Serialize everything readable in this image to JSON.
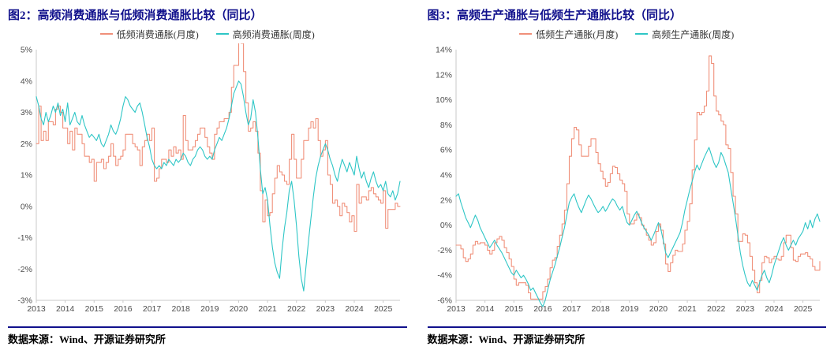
{
  "colors": {
    "navy": "#10108c",
    "low_freq_line": "#f0907a",
    "high_freq_line": "#2ec6c6",
    "axis": "#c9c9c9",
    "tick_text": "#4d4d4d"
  },
  "figures": [
    {
      "title": "图2：高频消费通胀与低频消费通胀比较（同比）",
      "source": "数据来源：Wind、开源证券研究所",
      "legend": [
        {
          "label": "低频消费通胀(月度)",
          "color": "#f0907a"
        },
        {
          "label": "高频消费通胀(周度)",
          "color": "#2ec6c6"
        }
      ]
    },
    {
      "title": "图3：高频生产通胀与低频生产通胀比较（同比）",
      "source": "数据来源：Wind、开源证券研究所",
      "legend": [
        {
          "label": "低频生产通胀(月度)",
          "color": "#f0907a"
        },
        {
          "label": "高频生产通胀(周度)",
          "color": "#2ec6c6"
        }
      ]
    }
  ],
  "chart_data": [
    {
      "type": "line",
      "title": "高频消费通胀与低频消费通胀比较（同比）",
      "x_start": 2013.0,
      "x_step_years": 0.0833333,
      "x_ticks": [
        2013,
        2014,
        2015,
        2016,
        2017,
        2018,
        2019,
        2020,
        2021,
        2022,
        2023,
        2024,
        2025
      ],
      "ylim": [
        -3,
        5
      ],
      "y_tick_step": 1,
      "y_tick_suffix": "%",
      "grid": false,
      "legend_position": "top",
      "series": [
        {
          "name": "低频消费通胀(月度)",
          "color": "#f0907a",
          "style": "step",
          "values": [
            2.0,
            3.2,
            2.1,
            2.4,
            2.1,
            2.7,
            2.7,
            2.6,
            3.1,
            3.2,
            3.0,
            2.5,
            2.5,
            2.0,
            2.4,
            1.8,
            2.5,
            2.3,
            2.3,
            2.0,
            1.6,
            1.6,
            1.4,
            1.5,
            0.8,
            1.4,
            1.4,
            1.5,
            1.2,
            1.4,
            1.6,
            2.0,
            1.6,
            1.3,
            1.5,
            1.6,
            1.8,
            2.3,
            2.3,
            2.3,
            2.0,
            1.9,
            1.8,
            1.3,
            1.9,
            2.1,
            2.3,
            2.1,
            2.5,
            0.8,
            0.9,
            1.2,
            1.5,
            1.5,
            1.4,
            1.8,
            1.6,
            1.9,
            1.7,
            1.8,
            1.5,
            2.9,
            2.1,
            1.8,
            1.8,
            1.9,
            2.1,
            2.3,
            2.5,
            2.5,
            2.2,
            1.9,
            1.7,
            1.5,
            2.3,
            2.5,
            2.7,
            2.7,
            2.8,
            2.8,
            3.0,
            3.8,
            4.5,
            4.5,
            5.4,
            5.2,
            4.3,
            3.3,
            2.4,
            2.5,
            2.7,
            2.4,
            1.7,
            0.5,
            -0.5,
            0.2,
            -0.3,
            -0.2,
            0.4,
            0.9,
            1.3,
            1.1,
            1.0,
            0.8,
            0.7,
            1.5,
            2.3,
            1.5,
            0.9,
            0.9,
            1.5,
            2.1,
            2.1,
            2.5,
            2.7,
            2.5,
            2.8,
            2.1,
            1.6,
            1.8,
            2.1,
            1.0,
            0.7,
            0.1,
            0.2,
            0.0,
            -0.3,
            0.1,
            0.0,
            -0.2,
            -0.5,
            -0.3,
            -0.8,
            0.7,
            0.1,
            0.3,
            0.3,
            0.2,
            0.5,
            0.6,
            0.4,
            0.3,
            0.2,
            0.1,
            0.5,
            -0.7,
            -0.1,
            -0.1,
            -0.1,
            0.1,
            0.0,
            0.0
          ]
        },
        {
          "name": "高频消费通胀(周度)",
          "color": "#2ec6c6",
          "style": "linear",
          "values": [
            3.5,
            3.2,
            2.8,
            2.6,
            3.0,
            2.7,
            2.9,
            3.2,
            3.0,
            3.3,
            2.9,
            3.1,
            2.7,
            3.3,
            2.6,
            2.8,
            3.0,
            2.7,
            2.6,
            2.9,
            2.6,
            2.4,
            2.2,
            2.3,
            2.2,
            2.1,
            2.3,
            2.0,
            1.9,
            2.1,
            2.3,
            2.6,
            2.4,
            2.3,
            2.5,
            2.8,
            3.2,
            3.5,
            3.4,
            3.2,
            3.1,
            3.0,
            3.2,
            3.3,
            3.0,
            2.6,
            2.2,
            1.9,
            1.5,
            1.3,
            1.2,
            1.3,
            1.2,
            1.4,
            1.3,
            1.5,
            1.4,
            1.3,
            1.5,
            1.4,
            1.5,
            1.7,
            1.6,
            1.4,
            1.3,
            1.5,
            1.6,
            1.8,
            1.9,
            1.8,
            1.6,
            1.5,
            1.6,
            1.5,
            1.8,
            2.0,
            2.2,
            2.1,
            2.3,
            2.5,
            2.8,
            3.2,
            3.6,
            3.8,
            4.0,
            3.9,
            3.5,
            3.0,
            2.6,
            2.8,
            3.4,
            3.0,
            2.2,
            1.2,
            0.4,
            0.6,
            0.2,
            -0.6,
            -1.3,
            -1.8,
            -2.1,
            -2.3,
            -1.4,
            -0.7,
            -0.2,
            0.5,
            0.8,
            0.2,
            -0.6,
            -1.6,
            -2.3,
            -2.7,
            -1.9,
            -1.1,
            -0.4,
            0.3,
            0.9,
            1.3,
            1.6,
            1.8,
            2.0,
            1.8,
            1.5,
            1.3,
            1.0,
            0.8,
            1.2,
            1.5,
            1.3,
            1.1,
            1.4,
            1.2,
            1.0,
            1.6,
            1.2,
            0.9,
            1.1,
            0.8,
            0.6,
            0.9,
            1.1,
            0.8,
            0.6,
            0.7,
            0.5,
            0.8,
            0.4,
            0.3,
            0.5,
            0.2,
            0.4,
            0.8
          ]
        }
      ]
    },
    {
      "type": "line",
      "title": "高频生产通胀与低频生产通胀比较（同比）",
      "x_start": 2013.0,
      "x_step_years": 0.0833333,
      "x_ticks": [
        2013,
        2014,
        2015,
        2016,
        2017,
        2018,
        2019,
        2020,
        2021,
        2022,
        2023,
        2024,
        2025
      ],
      "ylim": [
        -6,
        14
      ],
      "y_tick_step": 2,
      "y_tick_suffix": "%",
      "grid": false,
      "legend_position": "top",
      "series": [
        {
          "name": "低频生产通胀(月度)",
          "color": "#f0907a",
          "style": "step",
          "values": [
            -1.6,
            -1.6,
            -1.9,
            -2.6,
            -2.9,
            -2.7,
            -2.3,
            -1.6,
            -1.3,
            -1.5,
            -1.4,
            -1.4,
            -1.6,
            -2.0,
            -2.3,
            -2.0,
            -1.4,
            -1.1,
            -0.9,
            -1.2,
            -1.8,
            -2.2,
            -2.7,
            -3.3,
            -4.3,
            -4.8,
            -4.6,
            -4.6,
            -4.6,
            -4.8,
            -5.4,
            -5.9,
            -5.9,
            -5.9,
            -5.9,
            -5.9,
            -5.3,
            -4.9,
            -4.3,
            -3.4,
            -2.8,
            -2.6,
            -1.7,
            -0.8,
            0.1,
            1.2,
            3.3,
            5.5,
            6.9,
            7.8,
            7.6,
            6.4,
            5.5,
            5.5,
            5.5,
            6.3,
            6.9,
            6.9,
            5.8,
            4.9,
            4.3,
            3.7,
            3.1,
            3.4,
            4.1,
            4.7,
            4.6,
            4.1,
            3.6,
            3.3,
            2.7,
            0.9,
            0.1,
            0.1,
            0.4,
            0.9,
            0.6,
            0.0,
            -0.3,
            -0.8,
            -1.2,
            -1.6,
            -1.4,
            -0.5,
            0.1,
            -0.4,
            -1.5,
            -3.1,
            -3.7,
            -3.0,
            -2.4,
            -2.0,
            -2.1,
            -2.1,
            -1.5,
            -0.4,
            0.3,
            1.7,
            4.4,
            6.8,
            9.0,
            8.8,
            9.0,
            9.5,
            10.7,
            13.5,
            12.9,
            10.3,
            9.1,
            8.8,
            8.3,
            8.0,
            6.4,
            6.1,
            4.2,
            2.3,
            0.9,
            -1.3,
            -1.3,
            -0.7,
            -0.8,
            -1.4,
            -2.5,
            -3.6,
            -4.6,
            -5.4,
            -4.4,
            -3.0,
            -2.5,
            -2.6,
            -3.0,
            -2.7,
            -2.5,
            -2.7,
            -2.8,
            -2.5,
            -1.4,
            -0.8,
            -0.8,
            -1.8,
            -2.8,
            -2.9,
            -2.5,
            -2.3,
            -2.3,
            -2.2,
            -2.5,
            -2.7,
            -3.3,
            -3.6,
            -3.6,
            -2.9
          ]
        },
        {
          "name": "高频生产通胀(周度)",
          "color": "#2ec6c6",
          "style": "linear",
          "values": [
            2.3,
            2.5,
            1.8,
            1.2,
            0.6,
            0.2,
            -0.2,
            0.3,
            0.8,
            0.4,
            -0.2,
            -0.6,
            -1.0,
            -1.4,
            -1.8,
            -1.5,
            -1.2,
            -1.6,
            -1.9,
            -2.2,
            -2.6,
            -3.0,
            -3.4,
            -3.8,
            -4.0,
            -3.6,
            -3.9,
            -4.2,
            -4.0,
            -4.3,
            -4.7,
            -5.2,
            -5.0,
            -5.4,
            -5.8,
            -6.2,
            -6.5,
            -6.0,
            -5.2,
            -4.4,
            -3.8,
            -3.2,
            -2.5,
            -1.8,
            -1.0,
            -0.2,
            0.8,
            1.8,
            2.2,
            2.5,
            1.9,
            1.4,
            1.0,
            1.5,
            2.0,
            2.4,
            2.1,
            1.7,
            1.3,
            1.0,
            1.2,
            1.5,
            1.1,
            1.4,
            1.8,
            2.1,
            1.9,
            1.5,
            1.2,
            1.5,
            0.8,
            0.2,
            0.0,
            0.4,
            0.8,
            1.1,
            0.7,
            0.2,
            -0.2,
            -0.5,
            -0.8,
            -1.2,
            -0.8,
            -0.3,
            0.2,
            -0.3,
            -1.2,
            -2.2,
            -2.6,
            -2.2,
            -1.8,
            -1.4,
            -1.0,
            -0.6,
            0.2,
            1.2,
            2.0,
            2.8,
            3.5,
            4.2,
            4.8,
            4.4,
            4.9,
            5.4,
            5.8,
            6.2,
            5.6,
            5.0,
            4.6,
            5.0,
            5.8,
            5.4,
            4.8,
            4.2,
            3.0,
            1.8,
            0.6,
            -0.8,
            -2.2,
            -3.2,
            -4.0,
            -4.6,
            -4.9,
            -4.4,
            -4.8,
            -5.2,
            -4.6,
            -4.0,
            -3.6,
            -4.2,
            -4.6,
            -4.0,
            -3.2,
            -2.6,
            -2.0,
            -1.4,
            -1.0,
            -1.6,
            -2.0,
            -1.6,
            -1.2,
            -1.6,
            -1.1,
            -0.8,
            -0.5,
            0.2,
            -0.3,
            0.4,
            -0.2,
            0.5,
            0.9,
            0.3
          ]
        }
      ]
    }
  ]
}
